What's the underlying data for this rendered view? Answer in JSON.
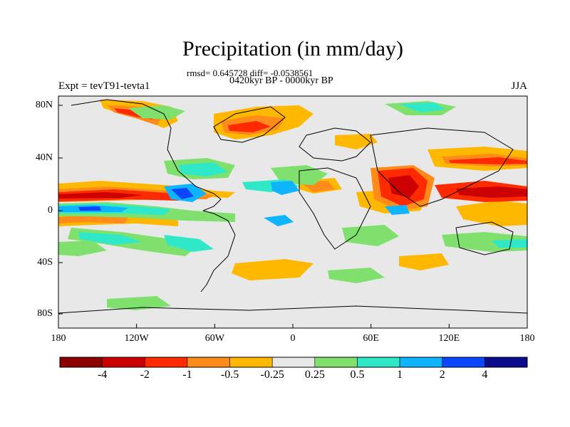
{
  "title": "Precipitation (in mm/day)",
  "stats": "rmsd= 0.645728 diff= -0.0538561",
  "period": "0420kyr BP - 0000kyr BP",
  "experiment": "Expt = tevT91-tevta1",
  "season": "JJA",
  "axes": {
    "y_ticks": [
      "80N",
      "40N",
      "0",
      "40S",
      "80S"
    ],
    "x_ticks": [
      "180",
      "120W",
      "60W",
      "0",
      "60E",
      "120E",
      "180"
    ]
  },
  "colorbar": {
    "labels": [
      "-4",
      "-2",
      "-1",
      "-0.5",
      "-0.25",
      "0.25",
      "0.5",
      "1",
      "2",
      "4"
    ],
    "colors": [
      "#8b0000",
      "#cc0000",
      "#ff2a00",
      "#ff8c1a",
      "#ffb800",
      "#e8e8e8",
      "#80e06e",
      "#2ee8c8",
      "#0fb4ff",
      "#0a46ff",
      "#0a0a8c"
    ]
  }
}
